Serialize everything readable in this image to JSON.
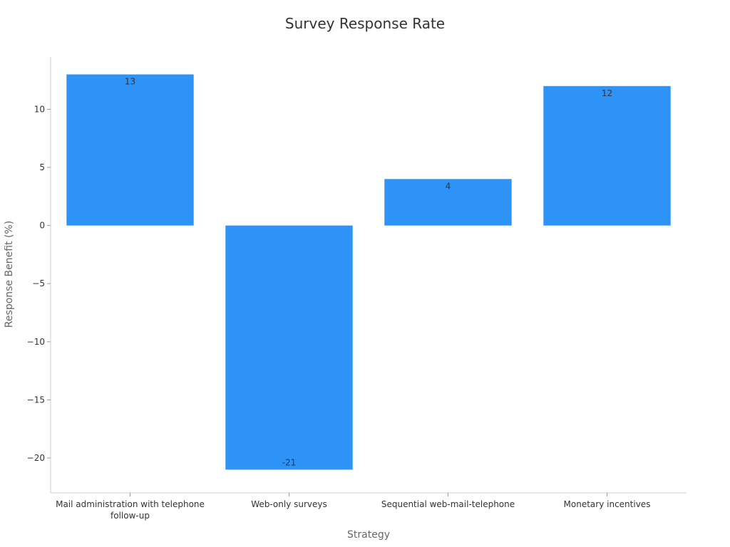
{
  "chart_data": {
    "type": "bar",
    "title": "Survey Response Rate",
    "xlabel": "Strategy",
    "ylabel": "Response Benefit (%)",
    "categories": [
      "Mail administration with telephone follow-up",
      "Web-only surveys",
      "Sequential web-mail-telephone",
      "Monetary incentives"
    ],
    "values": [
      13,
      -21,
      4,
      12
    ],
    "data_labels": [
      "13",
      "-21",
      "4",
      "12"
    ],
    "ylim": [
      -23,
      14.5
    ],
    "yticks": [
      -20,
      -15,
      -10,
      -5,
      0,
      5,
      10
    ],
    "ytick_labels": [
      "−20",
      "−15",
      "−10",
      "−5",
      "0",
      "5",
      "10"
    ],
    "grid": false,
    "legend": "none",
    "bar_color": "#2e93f7"
  }
}
